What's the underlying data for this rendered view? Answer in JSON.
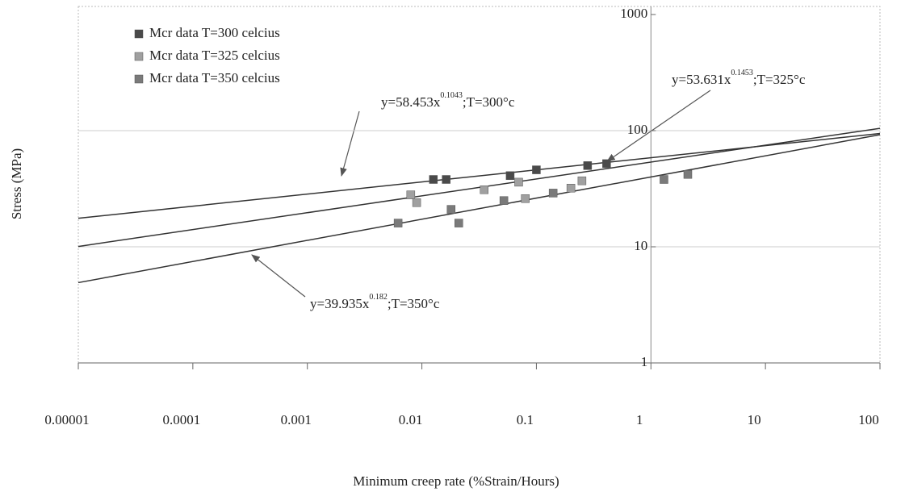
{
  "chart_data": {
    "type": "scatter",
    "xlabel": "Minimum creep rate (%Strain/Hours)",
    "ylabel": "Stress (MPa)",
    "xscale": "log",
    "yscale": "log",
    "xlim": [
      1e-05,
      100
    ],
    "ylim": [
      1,
      1000
    ],
    "xticks": [
      1e-05,
      0.0001,
      0.001,
      0.01,
      0.1,
      1,
      10,
      100
    ],
    "yticks": [
      1,
      10,
      100,
      1000
    ],
    "y_axis_at": 1,
    "grid": true,
    "legend": "upper left",
    "series": [
      {
        "name": "Mcr data T=300 celcius",
        "color": "#4a4a4a",
        "x": [
          0.0126,
          0.0163,
          0.059,
          0.1,
          0.28,
          0.41
        ],
        "values": [
          38,
          38,
          41,
          46,
          50,
          52
        ]
      },
      {
        "name": "Mcr data T=325 celcius",
        "color": "#a0a0a0",
        "x": [
          0.008,
          0.009,
          0.035,
          0.07,
          0.08,
          0.2,
          0.25
        ],
        "values": [
          28,
          24,
          31,
          36,
          26,
          32,
          37
        ]
      },
      {
        "name": "Mcr data T=350 celcius",
        "color": "#7a7a7a",
        "x": [
          0.0062,
          0.018,
          0.021,
          0.052,
          0.14,
          1.3,
          2.1
        ],
        "values": [
          16,
          21,
          16,
          25,
          29,
          38,
          42
        ]
      }
    ],
    "fits": [
      {
        "a": 58.453,
        "b": 0.1043,
        "prefix": "y=58.453x",
        "exponent_label": "0.1043",
        "suffix": ";T=300°c"
      },
      {
        "a": 53.631,
        "b": 0.1453,
        "prefix": "y=53.631x",
        "exponent_label": "0.1453",
        "suffix": ";T=325°c"
      },
      {
        "a": 39.935,
        "b": 0.182,
        "prefix": "y=39.935x",
        "exponent_label": "0.182",
        "suffix": ";T=350°c"
      }
    ]
  }
}
